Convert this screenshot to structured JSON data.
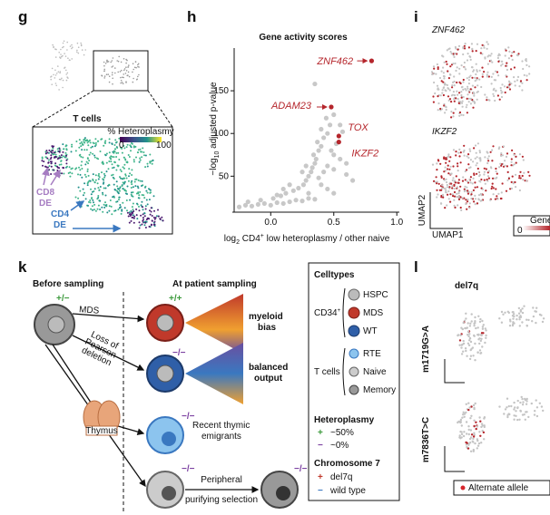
{
  "panels": {
    "g": "g",
    "h": "h",
    "i": "i",
    "k": "k",
    "l": "l"
  },
  "panel_g": {
    "title": "T cells",
    "colorbar_title": "% Heteroplasmy",
    "colorbar_min": "0",
    "colorbar_max": "100",
    "cd8": [
      "CD8",
      "DE"
    ],
    "cd4": [
      "CD4",
      "DE"
    ]
  },
  "chart_data": {
    "type": "scatter",
    "title": "Gene activity scores",
    "y_label_parts": [
      "−log",
      "10",
      " adjusted p-value"
    ],
    "x_label_parts": [
      "log",
      "2",
      " CD4",
      "+",
      " low heteroplasmy / other naive"
    ],
    "xlim": [
      -0.29,
      1.02
    ],
    "ylim": [
      10,
      200
    ],
    "xticks": [
      {
        "value": 0,
        "label": "0.0"
      },
      {
        "value": 0.5,
        "label": "0.5"
      },
      {
        "value": 1,
        "label": "1.0"
      }
    ],
    "yticks": [
      50,
      100,
      150
    ],
    "color": "#c8c8c8",
    "x": [
      -0.25,
      -0.2,
      -0.15,
      -0.1,
      -0.05,
      0,
      0.05,
      0.1,
      0.15,
      0.2,
      0.25,
      0.3,
      0.35,
      -0.18,
      -0.08,
      0.02,
      0.08,
      0.12,
      0.18,
      0.22,
      0.26,
      0.28,
      0.3,
      0.32,
      0.33,
      0.35,
      0.36,
      0.34,
      0.38,
      0.4,
      0.37,
      0.42,
      0.45,
      0.4,
      0.47,
      0.44,
      0.5,
      0.52,
      0.48,
      0.5,
      0.55,
      0.45,
      0.5,
      0.42,
      0.6,
      0.38,
      0.35,
      0.55,
      0.57,
      0.15,
      0.1,
      0.05,
      0.25,
      0.28,
      0.6,
      0.65,
      0.4,
      0.45,
      0.5,
      0.3
    ],
    "values": [
      14,
      16,
      15,
      17,
      18,
      16,
      19,
      18,
      20,
      22,
      21,
      24,
      23,
      20,
      22,
      24,
      27,
      30,
      33,
      36,
      40,
      45,
      50,
      55,
      60,
      65,
      70,
      75,
      80,
      85,
      90,
      95,
      100,
      105,
      110,
      118,
      122,
      88,
      80,
      75,
      70,
      62,
      58,
      55,
      52,
      48,
      158,
      110,
      102,
      40,
      35,
      28,
      55,
      62,
      65,
      45,
      40,
      35,
      30,
      30
    ],
    "highlights": {
      "color": "#b5262c",
      "labels": [
        "ZNF462",
        "ADAM23",
        "TOX",
        "IKZF2"
      ],
      "x": [
        0.8,
        0.48,
        0.54,
        0.54
      ],
      "values": [
        185,
        131,
        97,
        90
      ]
    }
  },
  "panel_i": {
    "genes": [
      "ZNF462",
      "IKZF2"
    ],
    "umap2": "UMAP2",
    "umap1": "UMAP1",
    "legend_title": "Gene",
    "legend_min": "0"
  },
  "panel_k": {
    "before": "Before sampling",
    "after": "At patient sampling",
    "start_genotype": "+/−",
    "mds": "MDS",
    "loss": [
      "Loss of",
      "Pearson",
      "deletion"
    ],
    "thymus": "Thymus",
    "genotypes": [
      "+/+",
      "−/−",
      "−/−",
      "−/−",
      "−/−"
    ],
    "myeloid": [
      "myeloid",
      "bias"
    ],
    "balanced": [
      "balanced",
      "output"
    ],
    "rte": [
      "Recent thymic",
      "emigrants"
    ],
    "peripheral": [
      "Peripheral",
      "purifying selection"
    ],
    "legend": {
      "celltypes": "Celltypes",
      "cd34": [
        "CD34",
        "+"
      ],
      "cd34_types": [
        "HSPC",
        "MDS",
        "WT"
      ],
      "tcells": "T cells",
      "tcell_types": [
        "RTE",
        "Naive",
        "Memory"
      ],
      "heteroplasmy": "Heteroplasmy",
      "het_items": [
        [
          "+",
          "~50%"
        ],
        [
          "−",
          "~0%"
        ]
      ],
      "chr7": "Chromosome 7",
      "chr_items": [
        [
          "+",
          "del7q"
        ],
        [
          "−",
          "wild type"
        ]
      ]
    }
  },
  "panel_l": {
    "title": "del7q",
    "rows": [
      "m1719G>A",
      "m7836T>C"
    ],
    "legend": "Alternate allele"
  }
}
